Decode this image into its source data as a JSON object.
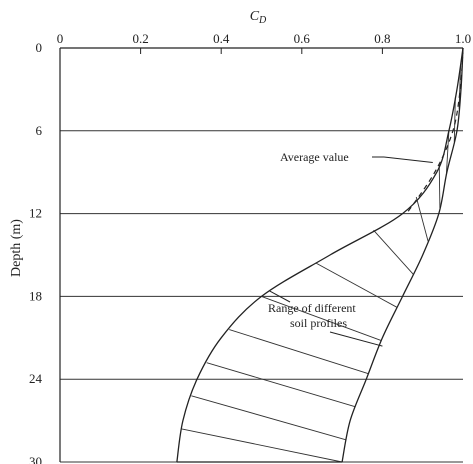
{
  "chart_data": {
    "type": "area",
    "xlabel_parts": {
      "main": "C",
      "sub": "D"
    },
    "ylabel": "Depth (m)",
    "xlim": [
      0,
      1.0
    ],
    "ylim": [
      0,
      30
    ],
    "y_inverted": true,
    "x_axis_position": "top",
    "x_ticks": [
      0,
      0.2,
      0.4,
      0.6,
      0.8,
      1.0
    ],
    "x_tick_labels": [
      "0",
      "0.2",
      "0.4",
      "0.6",
      "0.8",
      "1.0"
    ],
    "y_ticks": [
      0,
      6,
      12,
      18,
      24,
      30
    ],
    "y_tick_labels": [
      "0",
      "6",
      "12",
      "18",
      "24",
      "30"
    ],
    "grid": "horizontal lines at y ticks",
    "range_lower_bound": {
      "depth": [
        0,
        3,
        6,
        9,
        12,
        15,
        18,
        21,
        24,
        27,
        30
      ],
      "cd": [
        1.0,
        0.985,
        0.965,
        0.935,
        0.85,
        0.67,
        0.5,
        0.4,
        0.34,
        0.305,
        0.29
      ]
    },
    "range_upper_bound": {
      "depth": [
        0,
        3,
        6,
        9,
        12,
        15,
        18,
        21,
        24,
        27,
        30
      ],
      "cd": [
        1.0,
        0.995,
        0.985,
        0.96,
        0.94,
        0.9,
        0.85,
        0.8,
        0.76,
        0.72,
        0.7
      ]
    },
    "average_curve": {
      "depth": [
        0,
        3,
        6,
        9,
        12
      ],
      "cd": [
        1.0,
        0.993,
        0.975,
        0.93,
        0.86
      ]
    },
    "annotations": [
      {
        "text_lines": [
          "Average value"
        ],
        "points_to": {
          "cd": 0.925,
          "depth": 8.3
        }
      },
      {
        "text_lines": [
          "Range of different",
          "soil profiles"
        ],
        "points_to_list": [
          {
            "cd": 0.52,
            "depth": 17.6
          },
          {
            "cd": 0.8,
            "depth": 21.6
          }
        ]
      }
    ]
  }
}
